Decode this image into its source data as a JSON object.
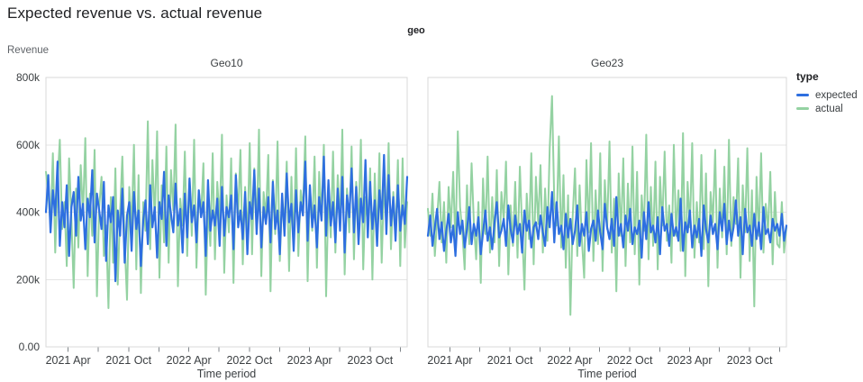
{
  "page_title": "Expected revenue vs. actual revenue",
  "colors": {
    "expected": "#2e6fe0",
    "actual": "#94d2a2",
    "grid": "#e4e4e4",
    "panel_border": "#d9d9d9",
    "tick_mark": "#80868b",
    "axis_text": "#3c4043",
    "muted_text": "#5f6368",
    "title_text": "#202124"
  },
  "chart_data": {
    "type": "line",
    "title": "Expected revenue vs. actual revenue",
    "facet_field": "geo",
    "xlabel": "Time period",
    "ylabel": "Revenue",
    "value_units": "thousands",
    "ylim": [
      0,
      800
    ],
    "grid": "horizontal-only",
    "legend_position": "right",
    "x_start": "2021-01-24",
    "x_step_days": 7,
    "y_ticks": [
      {
        "v": 0,
        "label": "0.00"
      },
      {
        "v": 200,
        "label": "200k"
      },
      {
        "v": 400,
        "label": "400k"
      },
      {
        "v": 600,
        "label": "600k"
      },
      {
        "v": 800,
        "label": "800k"
      }
    ],
    "x_ticks": [
      {
        "date": "2021-04-01",
        "label": "2021 Apr"
      },
      {
        "date": "2021-07-01",
        "label": ""
      },
      {
        "date": "2021-10-01",
        "label": "2021 Oct"
      },
      {
        "date": "2022-01-01",
        "label": ""
      },
      {
        "date": "2022-04-01",
        "label": "2022 Apr"
      },
      {
        "date": "2022-07-01",
        "label": ""
      },
      {
        "date": "2022-10-01",
        "label": "2022 Oct"
      },
      {
        "date": "2023-01-01",
        "label": ""
      },
      {
        "date": "2023-04-01",
        "label": "2023 Apr"
      },
      {
        "date": "2023-07-01",
        "label": ""
      },
      {
        "date": "2023-10-01",
        "label": "2023 Oct"
      },
      {
        "date": "2024-01-01",
        "label": ""
      }
    ],
    "legend": {
      "title": "type",
      "items": [
        {
          "label": "expected",
          "color_key": "expected"
        },
        {
          "label": "actual",
          "color_key": "actual"
        }
      ]
    },
    "facets": [
      {
        "name": "Geo10",
        "series": [
          {
            "name": "actual",
            "values": [
              520,
              455,
              360,
              575,
              280,
              490,
              615,
              350,
              430,
              240,
              560,
              380,
              175,
              470,
              295,
              540,
              390,
              620,
              210,
              455,
              330,
              585,
              150,
              415,
              505,
              270,
              360,
              115,
              445,
              250,
              530,
              185,
              400,
              565,
              310,
              140,
              475,
              355,
              600,
              230,
              510,
              160,
              430,
              345,
              670,
              290,
              555,
              375,
              640,
              205,
              480,
              310,
              595,
              250,
              525,
              405,
              660,
              180,
              440,
              360,
              580,
              270,
              500,
              330,
              615,
              235,
              465,
              390,
              545,
              155,
              420,
              300,
              575,
              260,
              490,
              370,
              630,
              220,
              450,
              340,
              560,
              190,
              515,
              395,
              585,
              245,
              475,
              315,
              605,
              275,
              530,
              350,
              645,
              210,
              460,
              385,
              570,
              165,
              495,
              335,
              610,
              255,
              440,
              365,
              550,
              225,
              505,
              300,
              590,
              270,
              465,
              410,
              625,
              195,
              480,
              345,
              565,
              235,
              520,
              390,
              600,
              150,
              455,
              325,
              580,
              280,
              510,
              360,
              645,
              215,
              470,
              340,
              595,
              260,
              490,
              375,
              615,
              230,
              445,
              355,
              530,
              200,
              515,
              320,
              575,
              250,
              485,
              365,
              605,
              290,
              460,
              330,
              555,
              240,
              560,
              295,
              430
            ]
          },
          {
            "name": "expected",
            "values": [
              400,
              510,
              340,
              465,
              390,
              550,
              300,
              430,
              355,
              480,
              270,
              415,
              460,
              330,
              505,
              375,
              425,
              290,
              440,
              385,
              525,
              310,
              455,
              405,
              350,
              490,
              255,
              420,
              370,
              445,
              195,
              405,
              330,
              470,
              250,
              390,
              430,
              285,
              460,
              350,
              405,
              240,
              375,
              435,
              305,
              480,
              355,
              415,
              265,
              430,
              380,
              520,
              300,
              450,
              395,
              340,
              485,
              360,
              410,
              280,
              455,
              325,
              500,
              370,
              420,
              310,
              465,
              385,
              430,
              270,
              495,
              345,
              405,
              360,
              440,
              300,
              475,
              330,
              415,
              385,
              450,
              290,
              510,
              355,
              405,
              320,
              460,
              275,
              430,
              380,
              525,
              335,
              470,
              295,
              415,
              365,
              445,
              310,
              490,
              350,
              405,
              275,
              455,
              330,
              515,
              370,
              425,
              285,
              465,
              340,
              430,
              390,
              550,
              315,
              480,
              355,
              420,
              295,
              445,
              375,
              565,
              330,
              495,
              360,
              430,
              310,
              470,
              345,
              505,
              280,
              450,
              385,
              530,
              340,
              475,
              305,
              440,
              370,
              555,
              325,
              490,
              350,
              435,
              300,
              465,
              380,
              570,
              335,
              510,
              360,
              445,
              315,
              480,
              345,
              420,
              365,
              505
            ]
          }
        ]
      },
      {
        "name": "Geo23",
        "series": [
          {
            "name": "actual",
            "values": [
              410,
              330,
              455,
              270,
              380,
              490,
              310,
              430,
              250,
              475,
              355,
              520,
              290,
              640,
              415,
              340,
              230,
              480,
              305,
              545,
              370,
              260,
              430,
              190,
              500,
              335,
              565,
              280,
              445,
              310,
              525,
              240,
              460,
              375,
              550,
              215,
              420,
              300,
              490,
              265,
              535,
              350,
              170,
              455,
              320,
              575,
              245,
              505,
              365,
              540,
              280,
              470,
              315,
              590,
              745,
              430,
              360,
              625,
              295,
              510,
              235,
              450,
              95,
              385,
              530,
              270,
              480,
              320,
              205,
              555,
              340,
              605,
              255,
              465,
              305,
              575,
              225,
              495,
              350,
              610,
              280,
              440,
              165,
              515,
              330,
              560,
              240,
              485,
              310,
              595,
              275,
              520,
              185,
              450,
              345,
              630,
              260,
              475,
              300,
              550,
              230,
              505,
              360,
              580,
              315,
              420,
              250,
              600,
              330,
              465,
              285,
              635,
              210,
              490,
              355,
              605,
              265,
              430,
              310,
              570,
              290,
              515,
              180,
              460,
              370,
              585,
              235,
              470,
              325,
              535,
              275,
              615,
              300,
              445,
              365,
              560,
              205,
              480,
              340,
              590,
              255,
              465,
              120,
              505,
              330,
              575,
              280,
              425,
              345,
              520,
              245,
              460,
              305,
              295,
              430,
              280,
              355
            ]
          },
          {
            "name": "expected",
            "values": [
              330,
              390,
              300,
              355,
              410,
              320,
              370,
              285,
              345,
              395,
              310,
              360,
              270,
              400,
              335,
              375,
              295,
              350,
              415,
              305,
              365,
              330,
              385,
              275,
              340,
              405,
              315,
              355,
              290,
              370,
              430,
              325,
              345,
              380,
              300,
              420,
              350,
              310,
              390,
              335,
              365,
              280,
              405,
              345,
              375,
              295,
              355,
              370,
              320,
              390,
              340,
              300,
              415,
              355,
              460,
              310,
              430,
              335,
              360,
              290,
              395,
              325,
              380,
              305,
              345,
              420,
              300,
              365,
              330,
              400,
              285,
              350,
              375,
              315,
              405,
              340,
              290,
              425,
              355,
              320,
              380,
              300,
              445,
              330,
              365,
              295,
              390,
              345,
              410,
              305,
              355,
              335,
              375,
              265,
              400,
              320,
              430,
              340,
              360,
              310,
              385,
              275,
              415,
              345,
              365,
              300,
              395,
              330,
              355,
              315,
              440,
              285,
              370,
              340,
              405,
              295,
              360,
              325,
              380,
              270,
              420,
              350,
              310,
              390,
              335,
              365,
              290,
              400,
              345,
              425,
              305,
              375,
              315,
              355,
              435,
              330,
              385,
              275,
              410,
              340,
              360,
              300,
              395,
              320,
              370,
              290,
              415,
              335,
              350,
              310,
              380,
              345,
              365,
              330,
              395,
              315,
              360
            ]
          }
        ]
      }
    ]
  }
}
